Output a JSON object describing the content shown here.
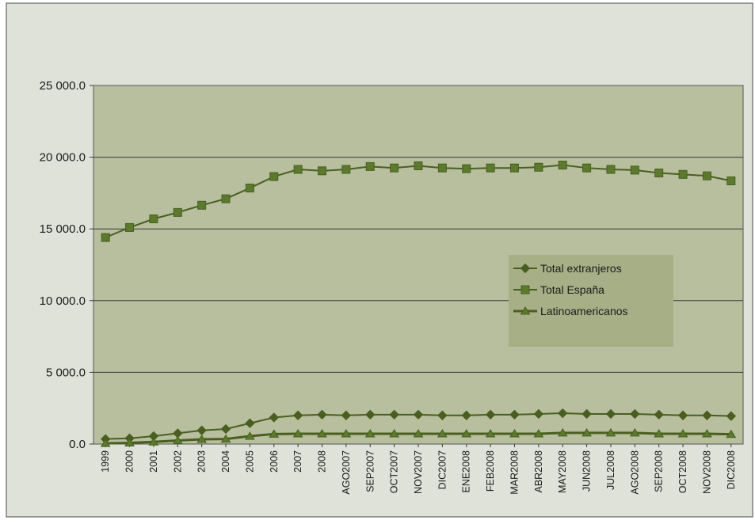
{
  "chart_data": {
    "type": "line",
    "title": "",
    "xlabel": "",
    "ylabel": "",
    "ylim": [
      0,
      25000
    ],
    "yticks": [
      "0.0",
      "5 000.0",
      "10 000.0",
      "15 000.0",
      "20 000.0",
      "25 000.0"
    ],
    "grid": "horizontal",
    "legend_position": "right",
    "colors": {
      "outer_background": "#dfe2d8",
      "plot_background": "#b8bf9e",
      "line": "#4a5e22",
      "marker": "#5b7a2c",
      "legend_background": "#a6af86"
    },
    "categories": [
      "1999",
      "2000",
      "2001",
      "2002",
      "2003",
      "2004",
      "2005",
      "2006",
      "2007",
      "2008",
      "AGO2007",
      "SEP2007",
      "OCT2007",
      "NOV2007",
      "DIC2007",
      "ENE2008",
      "FEB2008",
      "MAR2008",
      "ABR2008",
      "MAY2008",
      "JUN2008",
      "JUL2008",
      "AGO2008",
      "SEP2008",
      "OCT2008",
      "NOV2008",
      "DIC2008"
    ],
    "series": [
      {
        "name": "Total extranjeros",
        "marker": "diamond",
        "values": [
          350,
          400,
          550,
          750,
          950,
          1050,
          1450,
          1850,
          2000,
          2050,
          2000,
          2050,
          2050,
          2050,
          2000,
          2000,
          2050,
          2050,
          2100,
          2150,
          2100,
          2100,
          2100,
          2050,
          2000,
          2000,
          1950
        ]
      },
      {
        "name": "Total España",
        "marker": "square",
        "values": [
          14400,
          15100,
          15700,
          16150,
          16650,
          17100,
          17850,
          18650,
          19150,
          19050,
          19150,
          19350,
          19250,
          19400,
          19250,
          19200,
          19250,
          19250,
          19300,
          19450,
          19250,
          19150,
          19100,
          18900,
          18800,
          18700,
          18350
        ]
      },
      {
        "name": "Latinoamericanos",
        "marker": "triangle",
        "values": [
          50,
          80,
          150,
          250,
          330,
          350,
          550,
          700,
          720,
          720,
          720,
          720,
          720,
          720,
          720,
          720,
          720,
          720,
          720,
          780,
          780,
          780,
          780,
          720,
          720,
          720,
          680
        ]
      }
    ]
  }
}
